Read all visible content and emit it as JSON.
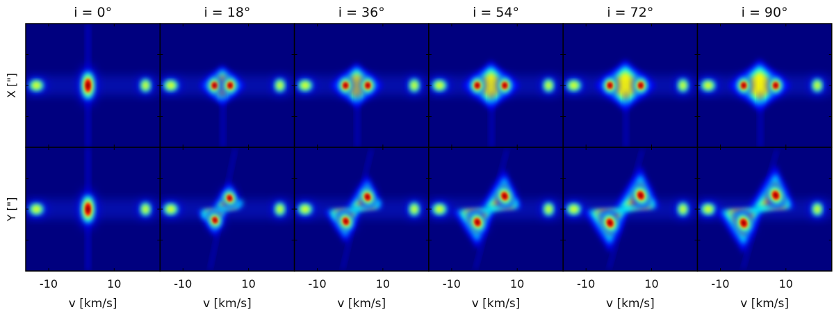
{
  "chart_data": {
    "type": "heatmap",
    "description_free": true,
    "columns": [
      {
        "title": "i = 0°",
        "inclination_deg": 0
      },
      {
        "title": "i = 18°",
        "inclination_deg": 18
      },
      {
        "title": "i = 36°",
        "inclination_deg": 36
      },
      {
        "title": "i = 54°",
        "inclination_deg": 54
      },
      {
        "title": "i = 72°",
        "inclination_deg": 72
      },
      {
        "title": "i = 90°",
        "inclination_deg": 90
      }
    ],
    "rows": [
      {
        "ylabel": "X [\"]"
      },
      {
        "ylabel": "Y [\"]"
      }
    ],
    "xlabel": "v [km/s]",
    "xticks": [
      -10,
      10
    ],
    "xlim": [
      -17,
      24
    ],
    "colormap": [
      "#00007f",
      "#0000ff",
      "#00ffff",
      "#ffff00",
      "#ff0000",
      "#7f0000"
    ]
  }
}
